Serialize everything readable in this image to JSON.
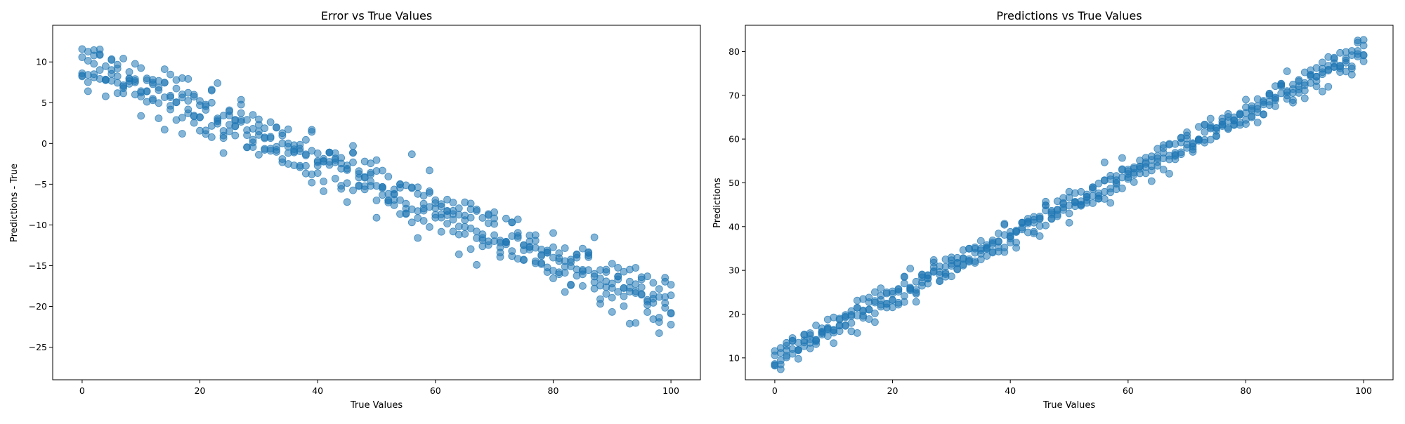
{
  "figure": {
    "background": "#ffffff",
    "point_color": "#1f77b4",
    "point_alpha": 0.55
  },
  "chart_data": [
    {
      "type": "scatter",
      "title": "Error vs True Values",
      "xlabel": "True Values",
      "ylabel": "Predictions - True",
      "xlim": [
        -5,
        105
      ],
      "ylim": [
        -29,
        14.5
      ],
      "xticks": [
        0,
        20,
        40,
        60,
        80,
        100
      ],
      "xtick_labels": [
        "0",
        "20",
        "40",
        "60",
        "80",
        "100"
      ],
      "yticks": [
        -25,
        -20,
        -15,
        -10,
        -5,
        0,
        5,
        10
      ],
      "ytick_labels": [
        "−25",
        "−20",
        "−15",
        "−10",
        "−5",
        "0",
        "5",
        "10"
      ],
      "grid": false,
      "trend": {
        "intercept": 10,
        "slope": -0.3
      },
      "x": [],
      "y": []
    },
    {
      "type": "scatter",
      "title": "Predictions vs True Values",
      "xlabel": "True Values",
      "ylabel": "Predictions",
      "xlim": [
        -5,
        105
      ],
      "ylim": [
        5,
        86
      ],
      "xticks": [
        0,
        20,
        40,
        60,
        80,
        100
      ],
      "xtick_labels": [
        "0",
        "20",
        "40",
        "60",
        "80",
        "100"
      ],
      "yticks": [
        10,
        20,
        30,
        40,
        50,
        60,
        70,
        80
      ],
      "ytick_labels": [
        "10",
        "20",
        "30",
        "40",
        "50",
        "60",
        "70",
        "80"
      ],
      "grid": false,
      "trend": {
        "intercept": 10,
        "slope": 0.7
      },
      "x": [],
      "y": []
    }
  ]
}
